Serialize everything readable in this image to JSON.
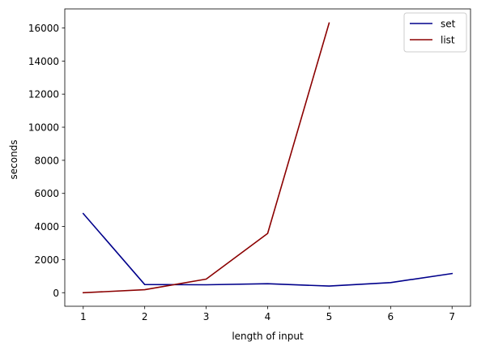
{
  "chart_data": {
    "type": "line",
    "title": "",
    "xlabel": "length of input",
    "ylabel": "seconds",
    "x_ticks": [
      1,
      2,
      3,
      4,
      5,
      6,
      7
    ],
    "y_ticks": [
      0,
      2000,
      4000,
      6000,
      8000,
      10000,
      12000,
      14000,
      16000
    ],
    "xlim": [
      0.7,
      7.3
    ],
    "ylim": [
      -820,
      17150
    ],
    "grid": false,
    "legend_position": "top-right",
    "series": [
      {
        "name": "set",
        "color": "#00008b",
        "x": [
          1,
          2,
          3,
          4,
          5,
          6,
          7
        ],
        "y": [
          4780,
          490,
          480,
          540,
          400,
          610,
          1160
        ]
      },
      {
        "name": "list",
        "color": "#8b0000",
        "x": [
          1,
          2,
          3,
          4,
          5
        ],
        "y": [
          0,
          180,
          820,
          3580,
          16300
        ]
      }
    ]
  }
}
